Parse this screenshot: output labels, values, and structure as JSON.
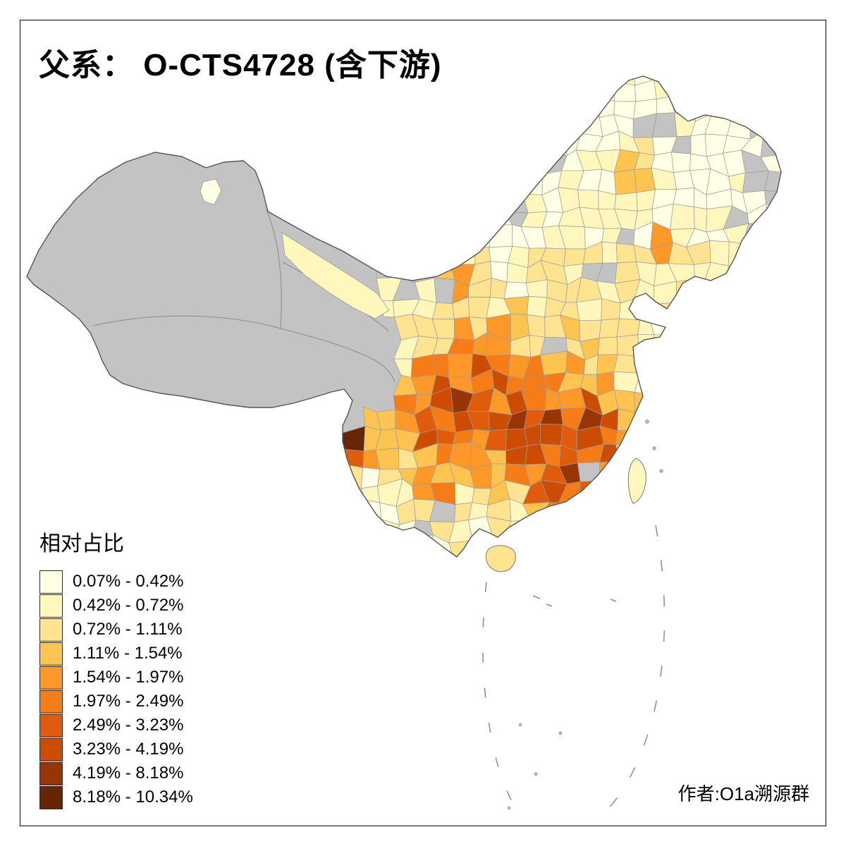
{
  "title": "父系： O-CTS4728 (含下游)",
  "author": "作者:O1a溯源群",
  "legend": {
    "title": "相对占比",
    "no_data_color": "#C3C3C3",
    "items": [
      {
        "label": "0.07% - 0.42%",
        "color": "#FFFFE5"
      },
      {
        "label": "0.42% - 0.72%",
        "color": "#FFF7BC"
      },
      {
        "label": "0.72% - 1.11%",
        "color": "#FEE391"
      },
      {
        "label": "1.11% - 1.54%",
        "color": "#FEC44F"
      },
      {
        "label": "1.54% - 1.97%",
        "color": "#FE9929"
      },
      {
        "label": "1.97% - 2.49%",
        "color": "#F57C16"
      },
      {
        "label": "2.49% - 3.23%",
        "color": "#E05C0C"
      },
      {
        "label": "3.23% - 4.19%",
        "color": "#CC4C02"
      },
      {
        "label": "4.19% - 8.18%",
        "color": "#993404"
      },
      {
        "label": "8.18% - 10.34%",
        "color": "#662506"
      }
    ]
  },
  "map_data": {
    "type": "choropleth",
    "region": "China, prefecture-level divisions",
    "value_unit": "%",
    "classes": 10,
    "value_min_label": "0.07%",
    "value_max_label": "10.34%"
  }
}
